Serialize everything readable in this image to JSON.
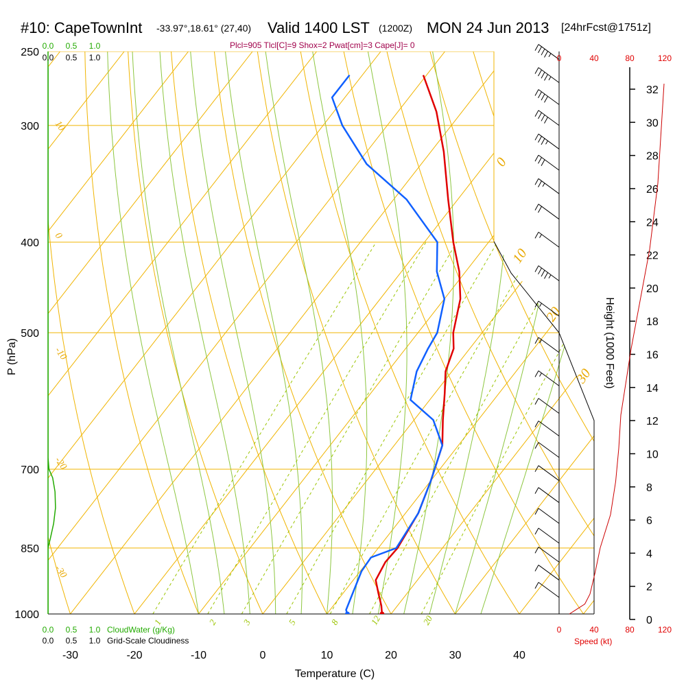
{
  "header": {
    "station": "#10: CapeTownInt",
    "coords": "-33.97°,18.61° (27,40)",
    "valid": "Valid 1400 LST",
    "zulu": "(1200Z)",
    "date": "MON 24 Jun 2013",
    "forecast": "[24hrFcst@1751z]",
    "indices": "Plcl=905 Tlcl[C]=9 Shox=2 Pwat[cm]=3 Cape[J]= 0"
  },
  "chart_data": {
    "type": "line",
    "title": "#10: CapeTownInt -33.97°,18.61° (27,40)  Valid 1400 LST (1200Z) MON 24 Jun 2013 [24hrFcst@1751z]",
    "xlabel": "Temperature (C)",
    "ylabel": "P (hPa)",
    "y2label": "Height (1000 Feet)",
    "xlim": [
      -35,
      45
    ],
    "x_ticks": [
      "-30",
      "-20",
      "-10",
      "0",
      "10",
      "20",
      "30",
      "40"
    ],
    "y_scale": "log",
    "ylim": [
      1000,
      250
    ],
    "y_ticks": [
      "250",
      "300",
      "400",
      "500",
      "700",
      "850",
      "1000"
    ],
    "height_ticks": [
      "0",
      "2",
      "4",
      "6",
      "8",
      "10",
      "12",
      "14",
      "16",
      "18",
      "20",
      "22",
      "24",
      "26",
      "28",
      "30",
      "32"
    ],
    "speed_label": "Speed (kt)",
    "speed_ticks": [
      "0",
      "40",
      "80",
      "120"
    ],
    "cloud_water_label": "CloudWater (g/Kg)",
    "cloud_water_ticks": [
      "0.0",
      "0.5",
      "1.0"
    ],
    "cloudiness_label": "Grid-Scale Cloudiness",
    "cloudiness_ticks": [
      "0.0",
      "0.5",
      "1.0"
    ],
    "isotherm_labels": [
      "10",
      "0",
      "-10",
      "-20",
      "-30",
      "0",
      "10",
      "20",
      "30"
    ],
    "mixing_ratio_labels": [
      "1",
      "2",
      "3",
      "5",
      "8",
      "12",
      "20"
    ],
    "series": [
      {
        "name": "Temperature",
        "color": "#e00000",
        "points": [
          [
            18.6,
            1000
          ],
          [
            17.5,
            980
          ],
          [
            15.5,
            950
          ],
          [
            13.5,
            920
          ],
          [
            12.8,
            880
          ],
          [
            13.0,
            850
          ],
          [
            12.0,
            780
          ],
          [
            10.0,
            720
          ],
          [
            7.5,
            660
          ],
          [
            4.5,
            620
          ],
          [
            1.5,
            580
          ],
          [
            -1.0,
            550
          ],
          [
            -2.5,
            520
          ],
          [
            -4.5,
            500
          ],
          [
            -7.5,
            460
          ],
          [
            -11.0,
            430
          ],
          [
            -15.5,
            400
          ],
          [
            -21.5,
            360
          ],
          [
            -28.0,
            320
          ],
          [
            -34.0,
            290
          ],
          [
            -40.5,
            265
          ]
        ]
      },
      {
        "name": "Dewpoint",
        "color": "#1060ff",
        "points": [
          [
            13.2,
            1000
          ],
          [
            12.5,
            990
          ],
          [
            11.5,
            950
          ],
          [
            10.2,
            900
          ],
          [
            10.0,
            870
          ],
          [
            12.8,
            850
          ],
          [
            12.0,
            780
          ],
          [
            10.0,
            720
          ],
          [
            7.5,
            660
          ],
          [
            3.0,
            620
          ],
          [
            -3.0,
            590
          ],
          [
            -5.5,
            550
          ],
          [
            -6.5,
            520
          ],
          [
            -7.0,
            500
          ],
          [
            -10.0,
            460
          ],
          [
            -14.5,
            430
          ],
          [
            -18.0,
            400
          ],
          [
            -28.0,
            360
          ],
          [
            -38.5,
            330
          ],
          [
            -47.0,
            300
          ],
          [
            -52.0,
            280
          ],
          [
            -52.0,
            265
          ]
        ]
      },
      {
        "name": "Height profile",
        "color": "#cc0000",
        "points": [
          [
            0,
            0
          ],
          [
            5,
            0.2
          ],
          [
            15,
            0.6
          ],
          [
            20,
            1.2
          ],
          [
            25,
            2.5
          ],
          [
            30,
            4
          ],
          [
            40,
            6
          ],
          [
            45,
            8
          ],
          [
            48,
            10
          ],
          [
            50,
            12
          ],
          [
            55,
            14
          ],
          [
            60,
            16
          ],
          [
            66,
            18
          ],
          [
            72,
            20
          ],
          [
            78,
            22
          ],
          [
            82,
            24
          ],
          [
            86,
            26
          ],
          [
            88,
            28
          ],
          [
            90,
            30
          ],
          [
            92,
            32
          ]
        ]
      },
      {
        "name": "CloudWater",
        "color": "#22aa00",
        "points": [
          [
            0.0,
            1000
          ],
          [
            0.0,
            850
          ],
          [
            0.05,
            830
          ],
          [
            0.12,
            800
          ],
          [
            0.16,
            770
          ],
          [
            0.15,
            740
          ],
          [
            0.1,
            715
          ],
          [
            0.02,
            700
          ],
          [
            0.0,
            680
          ],
          [
            0.0,
            260
          ]
        ]
      }
    ],
    "wind_barbs": [
      {
        "p": 255,
        "kt": 45
      },
      {
        "p": 270,
        "kt": 45
      },
      {
        "p": 285,
        "kt": 40
      },
      {
        "p": 300,
        "kt": 40
      },
      {
        "p": 318,
        "kt": 35
      },
      {
        "p": 335,
        "kt": 30
      },
      {
        "p": 355,
        "kt": 25
      },
      {
        "p": 378,
        "kt": 20
      },
      {
        "p": 405,
        "kt": 15
      },
      {
        "p": 440,
        "kt": 45
      },
      {
        "p": 480,
        "kt": 15
      },
      {
        "p": 525,
        "kt": 15
      },
      {
        "p": 570,
        "kt": 15
      },
      {
        "p": 610,
        "kt": 10
      },
      {
        "p": 645,
        "kt": 10
      },
      {
        "p": 680,
        "kt": 10
      },
      {
        "p": 720,
        "kt": 10
      },
      {
        "p": 760,
        "kt": 10
      },
      {
        "p": 800,
        "kt": 10
      },
      {
        "p": 840,
        "kt": 10
      },
      {
        "p": 880,
        "kt": 10
      },
      {
        "p": 920,
        "kt": 10
      },
      {
        "p": 960,
        "kt": 10
      }
    ]
  }
}
